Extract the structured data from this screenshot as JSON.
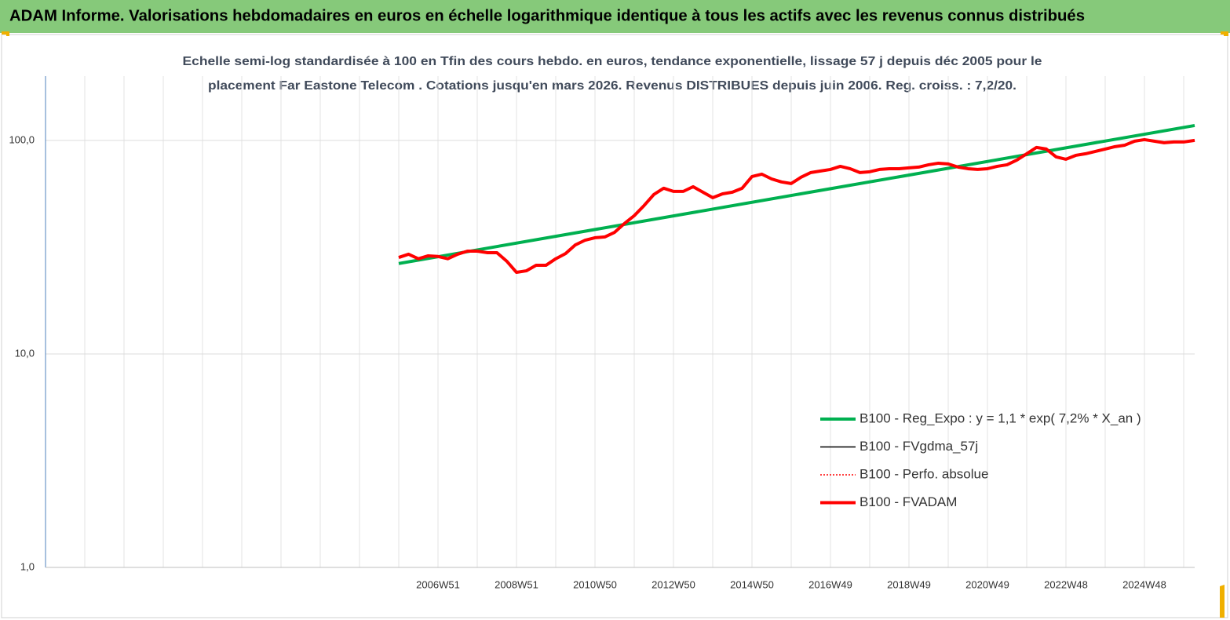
{
  "header": {
    "title": "ADAM Informe. Valorisations hebdomadaires en euros en échelle logarithmique identique à tous les actifs avec les revenus connus distribués"
  },
  "chart_data": {
    "type": "line",
    "title": [
      "Echelle semi-log standardisée à 100 en Tfin des cours hebdo. en euros, tendance exponentielle, lissage 57 j depuis déc 2005 pour le",
      "placement Far Eastone Telecom . Cotations jusqu'en mars 2026. Revenus DISTRIBUES depuis juin 2006. Reg. croiss. : 7,2/20."
    ],
    "log_scale": true,
    "grid": true,
    "legend": "lower right",
    "xlim": [
      1996.97,
      2026.25
    ],
    "ylim": [
      1,
      200
    ],
    "yticks": [
      {
        "value": 1,
        "label": "1,0"
      },
      {
        "value": 10,
        "label": "10,0"
      },
      {
        "value": 100,
        "label": "100,0"
      }
    ],
    "xticks": [
      {
        "value": 2006.97,
        "label": "2006W51"
      },
      {
        "value": 2008.97,
        "label": "2008W51"
      },
      {
        "value": 2010.97,
        "label": "2010W50"
      },
      {
        "value": 2012.97,
        "label": "2012W50"
      },
      {
        "value": 2014.97,
        "label": "2014W50"
      },
      {
        "value": 2016.97,
        "label": "2016W49"
      },
      {
        "value": 2018.97,
        "label": "2018W49"
      },
      {
        "value": 2020.97,
        "label": "2020W49"
      },
      {
        "value": 2022.97,
        "label": "2022W48"
      },
      {
        "value": 2024.97,
        "label": "2024W48"
      }
    ],
    "xminorticks": [
      1997.97,
      1998.97,
      1999.97,
      2000.97,
      2001.97,
      2002.97,
      2003.97,
      2004.97,
      2005.97,
      2007.97,
      2009.97,
      2011.97,
      2013.97,
      2015.97,
      2017.97,
      2019.97,
      2021.97,
      2023.97,
      2025.97
    ],
    "x": [
      2005.97,
      2006.22,
      2006.47,
      2006.72,
      2006.97,
      2007.22,
      2007.47,
      2007.72,
      2007.97,
      2008.22,
      2008.47,
      2008.72,
      2008.97,
      2009.22,
      2009.47,
      2009.72,
      2009.97,
      2010.22,
      2010.47,
      2010.72,
      2010.97,
      2011.22,
      2011.47,
      2011.72,
      2011.97,
      2012.22,
      2012.47,
      2012.72,
      2012.97,
      2013.22,
      2013.47,
      2013.72,
      2013.97,
      2014.22,
      2014.47,
      2014.72,
      2014.97,
      2015.22,
      2015.47,
      2015.72,
      2015.97,
      2016.22,
      2016.47,
      2016.72,
      2016.97,
      2017.22,
      2017.47,
      2017.72,
      2017.97,
      2018.22,
      2018.47,
      2018.72,
      2018.97,
      2019.22,
      2019.47,
      2019.72,
      2019.97,
      2020.22,
      2020.47,
      2020.72,
      2020.97,
      2021.22,
      2021.47,
      2021.72,
      2021.97,
      2022.22,
      2022.47,
      2022.72,
      2022.97,
      2023.22,
      2023.47,
      2023.72,
      2023.97,
      2024.22,
      2024.47,
      2024.72,
      2024.97,
      2025.22,
      2025.47,
      2025.72,
      2025.97,
      2026.25
    ],
    "series": [
      {
        "name": "B100 - Reg_Expo : y = 1,1 *  exp( 7,2% *  X_an )",
        "color": "#00b050",
        "style": "bold",
        "x": [
          2005.97,
          2026.25
        ],
        "values": [
          26.5,
          117.4
        ]
      },
      {
        "name": "B100 - FVgdma_57j",
        "color": "#000000",
        "style": "thin",
        "values": [
          28.3,
          29.3,
          27.9,
          28.8,
          28.6,
          27.9,
          29.3,
          30.3,
          30.3,
          29.8,
          29.8,
          27.2,
          24.1,
          24.5,
          26.0,
          26.0,
          27.9,
          29.5,
          32.4,
          34.1,
          35.0,
          35.3,
          37.1,
          40.8,
          44.4,
          49.5,
          55.8,
          59.7,
          57.7,
          57.7,
          60.7,
          57.2,
          53.9,
          56.2,
          57.2,
          59.7,
          67.7,
          69.5,
          66.0,
          63.9,
          62.8,
          67.2,
          70.7,
          71.9,
          73.1,
          75.6,
          73.7,
          70.7,
          71.3,
          73.1,
          73.7,
          73.7,
          74.4,
          75.0,
          76.9,
          78.2,
          77.6,
          75.0,
          73.7,
          73.1,
          73.7,
          75.6,
          76.9,
          80.9,
          86.6,
          92.7,
          91.1,
          83.7,
          81.6,
          85.1,
          86.6,
          88.8,
          91.1,
          93.5,
          95.0,
          99.2,
          100.8,
          99.2,
          97.5,
          98.3,
          98.3,
          100.0
        ]
      },
      {
        "name": "B100 - Perfo. absolue",
        "color": "#ff0000",
        "style": "dotted",
        "values": [
          28.3,
          29.3,
          27.9,
          28.8,
          28.6,
          27.9,
          29.3,
          30.3,
          30.3,
          29.8,
          29.8,
          27.2,
          24.1,
          24.5,
          26.0,
          26.0,
          27.9,
          29.5,
          32.4,
          34.1,
          35.0,
          35.3,
          37.1,
          40.8,
          44.4,
          49.5,
          55.8,
          59.7,
          57.7,
          57.7,
          60.7,
          57.2,
          53.9,
          56.2,
          57.2,
          59.7,
          67.7,
          69.5,
          66.0,
          63.9,
          62.8,
          67.2,
          70.7,
          71.9,
          73.1,
          75.6,
          73.7,
          70.7,
          71.3,
          73.1,
          73.7,
          73.7,
          74.4,
          75.0,
          76.9,
          78.2,
          77.6,
          75.0,
          73.7,
          73.1,
          73.7,
          75.6,
          76.9,
          80.9,
          86.6,
          92.7,
          91.1,
          83.7,
          81.6,
          85.1,
          86.6,
          88.8,
          91.1,
          93.5,
          95.0,
          99.2,
          100.8,
          99.2,
          97.5,
          98.3,
          98.3,
          100.0
        ]
      },
      {
        "name": "B100 - FVADAM",
        "color": "#ff0000",
        "style": "bold",
        "values": [
          28.3,
          29.3,
          27.9,
          28.8,
          28.6,
          27.9,
          29.3,
          30.3,
          30.3,
          29.8,
          29.8,
          27.2,
          24.1,
          24.5,
          26.0,
          26.0,
          27.9,
          29.5,
          32.4,
          34.1,
          35.0,
          35.3,
          37.1,
          40.8,
          44.4,
          49.5,
          55.8,
          59.7,
          57.7,
          57.7,
          60.7,
          57.2,
          53.9,
          56.2,
          57.2,
          59.7,
          67.7,
          69.5,
          66.0,
          63.9,
          62.8,
          67.2,
          70.7,
          71.9,
          73.1,
          75.6,
          73.7,
          70.7,
          71.3,
          73.1,
          73.7,
          73.7,
          74.4,
          75.0,
          76.9,
          78.2,
          77.6,
          75.0,
          73.7,
          73.1,
          73.7,
          75.6,
          76.9,
          80.9,
          86.6,
          92.7,
          91.1,
          83.7,
          81.6,
          85.1,
          86.6,
          88.8,
          91.1,
          93.5,
          95.0,
          99.2,
          100.8,
          99.2,
          97.5,
          98.3,
          98.3,
          100.0
        ]
      }
    ]
  }
}
